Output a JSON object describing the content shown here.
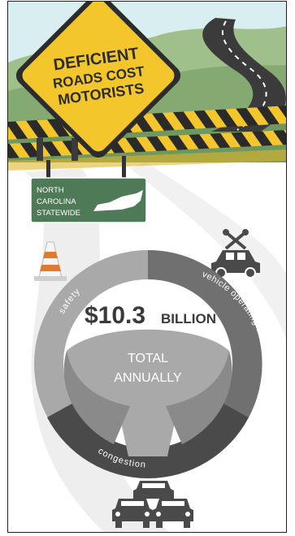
{
  "sign": {
    "line1": "DEFICIENT",
    "line2": "ROADS COST",
    "line3": "MOTORISTS"
  },
  "state_sign": {
    "line1": "NORTH",
    "line2": "CAROLINA",
    "line3": "STATEWIDE"
  },
  "wheel": {
    "amount": "$10.3",
    "unit": "BILLION",
    "caption_line1": "TOTAL",
    "caption_line2": "ANNUALLY",
    "segment_safety": "safety",
    "segment_operating": "vehicle operating costs",
    "segment_congestion": "congestion"
  },
  "colors": {
    "sign_yellow": "#f3c72c",
    "sign_text": "#2c2c2c",
    "state_sign_green": "#4f7a57",
    "sky": "#d9eef0",
    "hills": "#8fb27c",
    "road_dark": "#3b3b3b",
    "wheel_light": "#a9a9a9",
    "wheel_mid": "#707070",
    "wheel_dark": "#4a4a4a"
  },
  "icons": {
    "cone": "traffic-cone-icon",
    "repair": "car-repair-icon",
    "traffic": "traffic-jam-icon",
    "nc_map": "north-carolina-map-icon"
  }
}
